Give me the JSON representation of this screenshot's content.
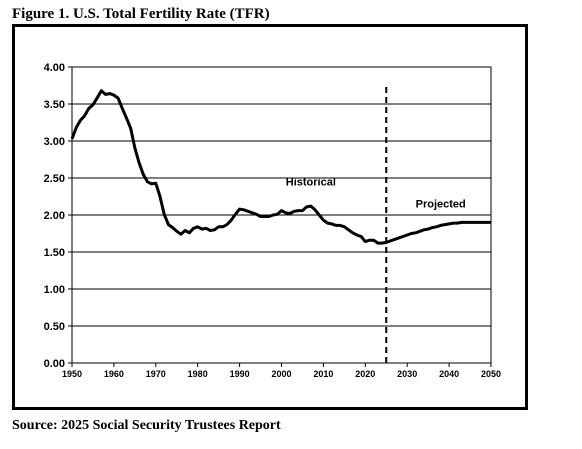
{
  "figure_title": "Figure 1. U.S. Total Fertility Rate (TFR)",
  "source": "Source: 2025 Social Security Trustees Report",
  "chart_data": {
    "type": "line",
    "title": "Figure 1. U.S. Total Fertility Rate (TFR)",
    "xlabel": "",
    "ylabel": "",
    "xlim": [
      1950,
      2050
    ],
    "ylim": [
      0,
      4
    ],
    "x_ticks": [
      1950,
      1960,
      1970,
      1980,
      1990,
      2000,
      2010,
      2020,
      2030,
      2040,
      2050
    ],
    "y_ticks": [
      "0.00",
      "0.50",
      "1.00",
      "1.50",
      "2.00",
      "2.50",
      "3.00",
      "3.50",
      "4.00"
    ],
    "grid": "horizontal",
    "divider_x": 2025,
    "annotations": [
      {
        "text": "Historical",
        "x": 2007,
        "y": 2.4
      },
      {
        "text": "Projected",
        "x": 2038,
        "y": 2.1
      }
    ],
    "series": [
      {
        "x": [
          1950,
          1951,
          1952,
          1953,
          1954,
          1955,
          1956,
          1957,
          1958,
          1959,
          1960,
          1961,
          1962,
          1963,
          1964,
          1965,
          1966,
          1967,
          1968,
          1969,
          1970,
          1971,
          1972,
          1973,
          1974,
          1975,
          1976,
          1977,
          1978,
          1979,
          1980,
          1981,
          1982,
          1983,
          1984,
          1985,
          1986,
          1987,
          1988,
          1989,
          1990,
          1991,
          1992,
          1993,
          1994,
          1995,
          1996,
          1997,
          1998,
          1999,
          2000,
          2001,
          2002,
          2003,
          2004,
          2005,
          2006,
          2007,
          2008,
          2009,
          2010,
          2011,
          2012,
          2013,
          2014,
          2015,
          2016,
          2017,
          2018,
          2019,
          2020,
          2021,
          2022,
          2023,
          2024,
          2025,
          2026,
          2027,
          2028,
          2029,
          2030,
          2031,
          2032,
          2033,
          2034,
          2035,
          2036,
          2037,
          2038,
          2039,
          2040,
          2041,
          2042,
          2043,
          2044,
          2045,
          2046,
          2047,
          2048,
          2049,
          2050
        ],
        "values": [
          3.03,
          3.18,
          3.28,
          3.34,
          3.44,
          3.49,
          3.58,
          3.68,
          3.63,
          3.64,
          3.62,
          3.58,
          3.44,
          3.31,
          3.17,
          2.91,
          2.71,
          2.55,
          2.45,
          2.42,
          2.43,
          2.25,
          2.01,
          1.87,
          1.83,
          1.78,
          1.74,
          1.79,
          1.76,
          1.82,
          1.84,
          1.81,
          1.82,
          1.79,
          1.8,
          1.84,
          1.84,
          1.87,
          1.93,
          2.01,
          2.08,
          2.07,
          2.05,
          2.03,
          2.01,
          1.98,
          1.98,
          1.98,
          2.0,
          2.01,
          2.06,
          2.03,
          2.02,
          2.05,
          2.06,
          2.06,
          2.11,
          2.12,
          2.07,
          2.0,
          1.93,
          1.89,
          1.88,
          1.86,
          1.86,
          1.84,
          1.8,
          1.76,
          1.73,
          1.71,
          1.64,
          1.66,
          1.66,
          1.62,
          1.62,
          1.63,
          1.65,
          1.67,
          1.69,
          1.71,
          1.73,
          1.75,
          1.76,
          1.78,
          1.8,
          1.81,
          1.83,
          1.84,
          1.86,
          1.87,
          1.88,
          1.89,
          1.89,
          1.9,
          1.9,
          1.9,
          1.9,
          1.9,
          1.9,
          1.9,
          1.9
        ]
      }
    ]
  }
}
